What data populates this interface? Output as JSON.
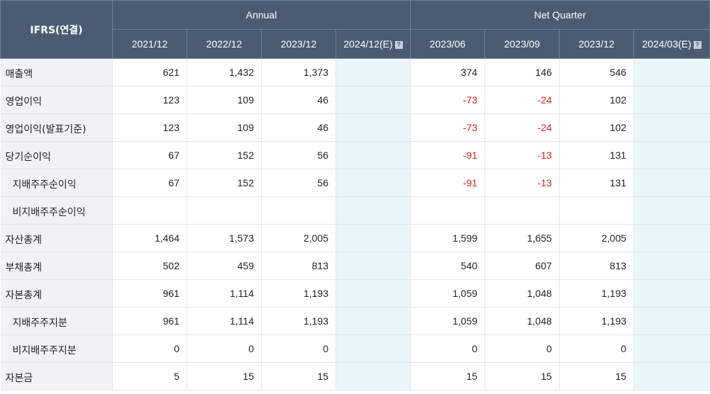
{
  "header": {
    "corner": "IFRS(연결)",
    "groups": [
      "Annual",
      "Net Quarter"
    ],
    "annual_periods": [
      "2021/12",
      "2022/12",
      "2023/12",
      "2024/12(E)"
    ],
    "quarter_periods": [
      "2023/06",
      "2023/09",
      "2023/12",
      "2024/03(E)"
    ],
    "help_icon": "question-icon"
  },
  "rows": [
    {
      "label": "매출액",
      "indent": false,
      "values": [
        "621",
        "1,432",
        "1,373",
        "",
        "374",
        "146",
        "546",
        ""
      ]
    },
    {
      "label": "영업이익",
      "indent": false,
      "values": [
        "123",
        "109",
        "46",
        "",
        "-73",
        "-24",
        "102",
        ""
      ]
    },
    {
      "label": "영업이익(발표기준)",
      "indent": false,
      "values": [
        "123",
        "109",
        "46",
        "",
        "-73",
        "-24",
        "102",
        ""
      ]
    },
    {
      "label": "당기순이익",
      "indent": false,
      "values": [
        "67",
        "152",
        "56",
        "",
        "-91",
        "-13",
        "131",
        ""
      ]
    },
    {
      "label": "지배주주순이익",
      "indent": true,
      "values": [
        "67",
        "152",
        "56",
        "",
        "-91",
        "-13",
        "131",
        ""
      ]
    },
    {
      "label": "비지배주주순이익",
      "indent": true,
      "values": [
        "",
        "",
        "",
        "",
        "",
        "",
        "",
        ""
      ]
    },
    {
      "label": "자산총계",
      "indent": false,
      "values": [
        "1,464",
        "1,573",
        "2,005",
        "",
        "1,599",
        "1,655",
        "2,005",
        ""
      ]
    },
    {
      "label": "부채총계",
      "indent": false,
      "values": [
        "502",
        "459",
        "813",
        "",
        "540",
        "607",
        "813",
        ""
      ]
    },
    {
      "label": "자본총계",
      "indent": false,
      "values": [
        "961",
        "1,114",
        "1,193",
        "",
        "1,059",
        "1,048",
        "1,193",
        ""
      ]
    },
    {
      "label": "지배주주지분",
      "indent": true,
      "values": [
        "961",
        "1,114",
        "1,193",
        "",
        "1,059",
        "1,048",
        "1,193",
        ""
      ]
    },
    {
      "label": "비지배주주지분",
      "indent": true,
      "values": [
        "0",
        "0",
        "0",
        "",
        "0",
        "0",
        "0",
        ""
      ]
    },
    {
      "label": "자본금",
      "indent": false,
      "values": [
        "5",
        "15",
        "15",
        "",
        "15",
        "15",
        "15",
        ""
      ]
    }
  ],
  "colors": {
    "header_bg": "#4b5c72",
    "label_bg": "#f0f2f6",
    "estimate_bg": "#eaf5fb",
    "negative": "#e0231f"
  }
}
